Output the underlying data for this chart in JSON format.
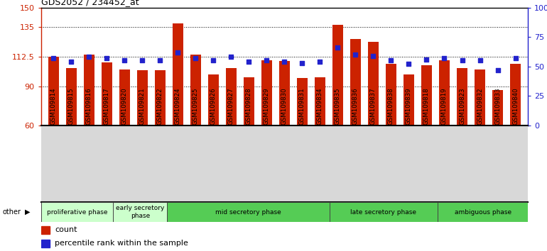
{
  "title": "GDS2052 / 234452_at",
  "samples": [
    "GSM109814",
    "GSM109815",
    "GSM109816",
    "GSM109817",
    "GSM109820",
    "GSM109821",
    "GSM109822",
    "GSM109824",
    "GSM109825",
    "GSM109826",
    "GSM109827",
    "GSM109828",
    "GSM109829",
    "GSM109830",
    "GSM109831",
    "GSM109834",
    "GSM109835",
    "GSM109836",
    "GSM109837",
    "GSM109838",
    "GSM109839",
    "GSM109818",
    "GSM109819",
    "GSM109823",
    "GSM109832",
    "GSM109833",
    "GSM109840"
  ],
  "bar_values": [
    112.5,
    104,
    114,
    108,
    103,
    102,
    102,
    138,
    114,
    99,
    104,
    97,
    110,
    109,
    96,
    97,
    137,
    126,
    124,
    107,
    99,
    106,
    110,
    104,
    103,
    87,
    107
  ],
  "percentile_values": [
    57,
    54,
    58,
    57,
    55,
    55,
    55,
    62,
    57,
    55,
    58,
    54,
    55,
    54,
    53,
    54,
    66,
    60,
    59,
    55,
    52,
    56,
    57,
    55,
    55,
    47,
    57
  ],
  "bar_color": "#cc2200",
  "dot_color": "#2222cc",
  "ymin": 60,
  "ymax": 150,
  "yticks_left": [
    60,
    90,
    112.5,
    135,
    150
  ],
  "ytick_left_labels": [
    "60",
    "90",
    "112.5",
    "135",
    "150"
  ],
  "yticks_right_vals": [
    0,
    25,
    50,
    75,
    100
  ],
  "yticks_right_labels": [
    "0",
    "25",
    "50",
    "75",
    "100%"
  ],
  "hgrid_vals": [
    90,
    112.5,
    135
  ],
  "phase_bar_counts": [
    4,
    3,
    9,
    6,
    5
  ],
  "phase_labels": [
    "proliferative phase",
    "early secretory\nphase",
    "mid secretory phase",
    "late secretory phase",
    "ambiguous phase"
  ],
  "phase_colors": [
    "#ccffcc",
    "#ccffcc",
    "#55cc55",
    "#55cc55",
    "#55cc55"
  ],
  "legend_count_label": "count",
  "legend_pct_label": "percentile rank within the sample",
  "other_label": "other",
  "xlabel_bg": "#d8d8d8"
}
